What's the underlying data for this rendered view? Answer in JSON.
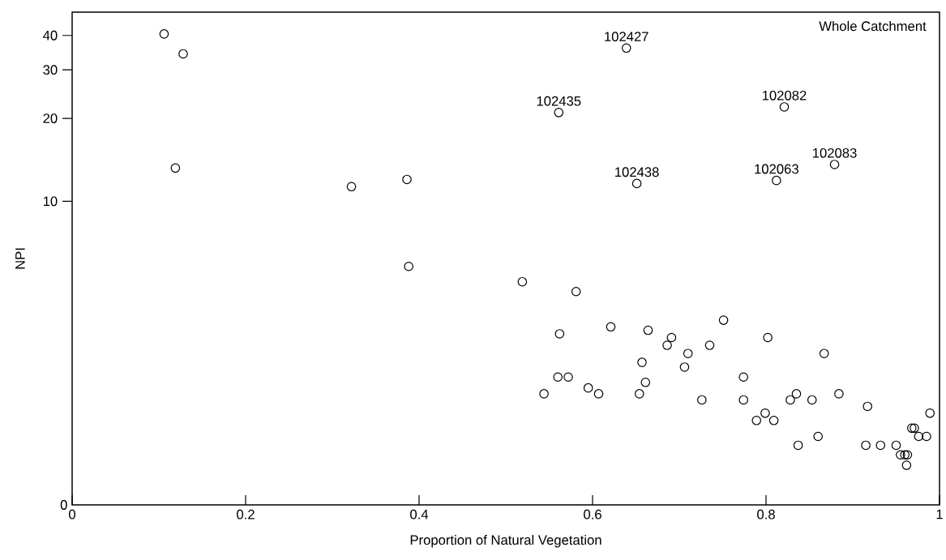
{
  "chart_data": {
    "type": "scatter",
    "xlabel": "Proportion of Natural Vegetation",
    "ylabel": "NPI",
    "annotations": [
      "Whole Catchment",
      "0",
      {
        "text": "102427",
        "x": 0.639,
        "y": 36
      },
      {
        "text": "102435",
        "x": 0.561,
        "y": 21
      },
      {
        "text": "102082",
        "x": 0.821,
        "y": 22
      },
      {
        "text": "102083",
        "x": 0.879,
        "y": 13.6
      },
      {
        "text": "102063",
        "x": 0.812,
        "y": 11.9
      },
      {
        "text": "102438",
        "x": 0.651,
        "y": 11.6
      }
    ],
    "x": [
      0.106,
      0.128,
      0.119,
      0.322,
      0.386,
      0.388,
      0.561,
      0.639,
      0.821,
      0.879,
      0.812,
      0.651,
      0.519,
      0.581,
      0.562,
      0.621,
      0.664,
      0.691,
      0.686,
      0.71,
      0.706,
      0.657,
      0.56,
      0.572,
      0.595,
      0.544,
      0.607,
      0.661,
      0.654,
      0.751,
      0.735,
      0.802,
      0.867,
      0.774,
      0.726,
      0.774,
      0.835,
      0.828,
      0.853,
      0.884,
      0.917,
      0.989,
      0.789,
      0.799,
      0.809,
      0.86,
      0.837,
      0.915,
      0.932,
      0.968,
      0.971,
      0.976,
      0.985,
      0.95,
      0.955,
      0.963,
      0.96,
      0.962
    ],
    "values": [
      40.5,
      34.3,
      13.2,
      11.3,
      12.0,
      5.8,
      21,
      36,
      22,
      13.6,
      11.9,
      11.6,
      5.1,
      4.7,
      3.3,
      3.5,
      3.4,
      3.2,
      3.0,
      2.8,
      2.5,
      2.6,
      2.3,
      2.3,
      2.1,
      2.0,
      2.0,
      2.2,
      2.0,
      3.7,
      3.0,
      3.2,
      2.8,
      2.3,
      1.9,
      1.9,
      2.0,
      1.9,
      1.9,
      2.0,
      1.8,
      1.7,
      1.6,
      1.7,
      1.6,
      1.4,
      1.3,
      1.3,
      1.3,
      1.5,
      1.5,
      1.4,
      1.4,
      1.3,
      1.2,
      1.2,
      1.2,
      1.1
    ],
    "color": "#000000",
    "marker": "circle",
    "log": "y",
    "xlim": [
      0,
      1
    ],
    "ylim": [
      0.79,
      48.6
    ],
    "xticks": [
      0,
      0.2,
      0.4,
      0.6,
      0.8,
      1
    ],
    "yticks": [
      10,
      20,
      30,
      40
    ]
  }
}
